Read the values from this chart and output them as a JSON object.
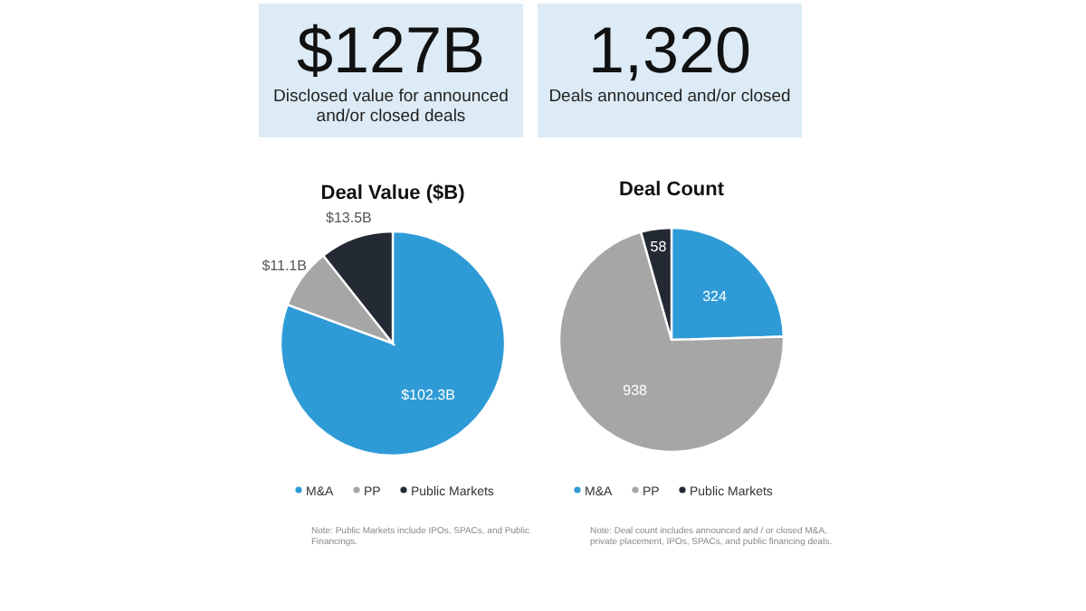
{
  "chart_data": [
    {
      "type": "other",
      "title": "$127B",
      "subtitle": "Disclosed value for announced and/or closed deals"
    },
    {
      "type": "other",
      "title": "1,320",
      "subtitle": "Deals announced and/or closed"
    },
    {
      "type": "pie",
      "title": "Deal Value ($B)",
      "categories": [
        "M&A",
        "PP",
        "Public Markets"
      ],
      "values": [
        102.3,
        11.1,
        13.5
      ],
      "value_labels": [
        "$102.3B",
        "$11.1B",
        "$13.5B"
      ],
      "colors": [
        "#2e9bd6",
        "#a6a6a6",
        "#232a33"
      ],
      "legend": "bottom",
      "annotations": [
        "Note: Public Markets include IPOs, SPACs, and Public Financings."
      ]
    },
    {
      "type": "pie",
      "title": "Deal Count",
      "categories": [
        "M&A",
        "PP",
        "Public Markets"
      ],
      "values": [
        324,
        938,
        58
      ],
      "data_labels": true,
      "colors": [
        "#2e9bd6",
        "#a6a6a6",
        "#232a33"
      ],
      "legend": "bottom",
      "annotations": [
        "Note: Deal count includes announced and / or closed M&A, private placement, IPOs, SPACs, and public financing deals."
      ]
    }
  ]
}
